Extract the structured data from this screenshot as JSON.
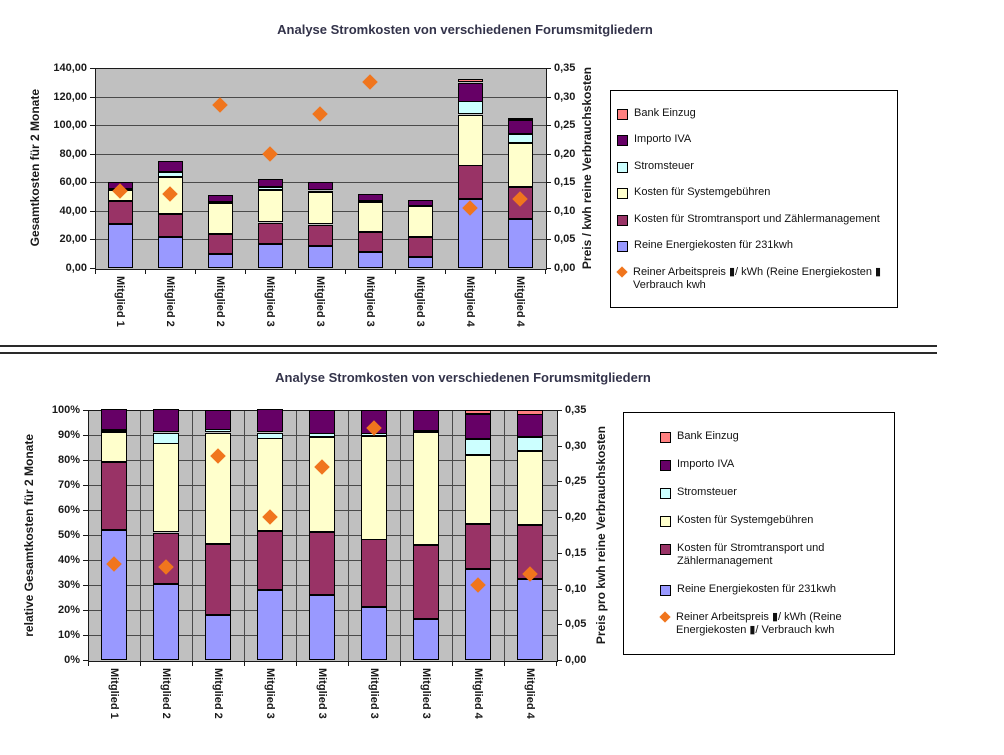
{
  "colors": {
    "plot_background": "#C0C0C0",
    "gridline": "#4A4A4A",
    "axis_line": "#1A1A1A",
    "title_text": "#33334A",
    "legend_background": "#FFFFFF",
    "legend_border": "#000000",
    "marker_orange": "#F0751D"
  },
  "chart_data": [
    {
      "type": "bar",
      "stacked": true,
      "percent": false,
      "title": "Analyse Stromkosten von verschiedenen Forumsmitgliedern",
      "categories": [
        "Mitglied 1",
        "Mitglied 2",
        "Mitglied 2",
        "Mitglied 3",
        "Mitglied 3",
        "Mitglied 3",
        "Mitglied 3",
        "Mitglied 4",
        "Mitglied 4"
      ],
      "y_axis": {
        "label": "Gesamtkosten für 2 Monate",
        "min": 0,
        "max": 140,
        "ticks": [
          "0,00",
          "20,00",
          "40,00",
          "60,00",
          "80,00",
          "100,00",
          "120,00",
          "140,00"
        ]
      },
      "y2_axis": {
        "label": "Preis / kwh reine Verbrauchskosten",
        "min": 0,
        "max": 0.35,
        "ticks": [
          "0,00",
          "0,05",
          "0,10",
          "0,15",
          "0,20",
          "0,25",
          "0,30",
          "0,35"
        ]
      },
      "grid": {
        "horizontal": true,
        "vertical": false
      },
      "legend_position": "right",
      "series": [
        {
          "name": "Reine Energiekosten für 231kwh",
          "color": "#9999FF",
          "values": [
            31,
            22,
            9.5,
            17,
            15.5,
            11,
            7.8,
            48,
            34
          ]
        },
        {
          "name": "Kosten für Stromtransport und Zählermanagement",
          "color": "#993366",
          "values": [
            16,
            16,
            14,
            15,
            15,
            14,
            14,
            23.5,
            22.5
          ]
        },
        {
          "name": "Kosten für Systemgebühren",
          "color": "#FFFFCC",
          "values": [
            7.5,
            26,
            22,
            22.5,
            23,
            21.5,
            21.5,
            36,
            31
          ]
        },
        {
          "name": "Stromsteuer",
          "color": "#CCFFFF",
          "values": [
            0.5,
            3.5,
            0.5,
            2,
            1,
            0.5,
            0.3,
            9,
            6
          ]
        },
        {
          "name": "Importo IVA",
          "color": "#660066",
          "values": [
            5,
            7.5,
            5,
            5.5,
            5.5,
            5,
            4.2,
            13.5,
            10
          ]
        },
        {
          "name": "Bank Einzug",
          "color": "#FF8080",
          "values": [
            0,
            0,
            0,
            0,
            0,
            0,
            0,
            2,
            1.5
          ]
        }
      ],
      "marker_series": {
        "name": "Reiner Arbeitspreis ▮/ kWh (Reine Energiekosten ▮ Verbrauch kwh",
        "color": "#F0751D",
        "shape": "diamond",
        "values": [
          0.135,
          0.13,
          0.285,
          0.2,
          0.27,
          0.325,
          null,
          0.105,
          0.12
        ]
      }
    },
    {
      "type": "bar",
      "stacked": true,
      "percent": true,
      "title": "Analyse Stromkosten von verschiedenen Forumsmitgliedern",
      "categories": [
        "Mitglied 1",
        "Mitglied 2",
        "Mitglied 2",
        "Mitglied 3",
        "Mitglied 3",
        "Mitglied 3",
        "Mitglied 3",
        "Mitglied 4",
        "Mitglied 4"
      ],
      "y_axis": {
        "label": "relative Gesamtkosten für 2 Monate",
        "min": 0,
        "max": 100,
        "ticks": [
          "0%",
          "10%",
          "20%",
          "30%",
          "40%",
          "50%",
          "60%",
          "70%",
          "80%",
          "90%",
          "100%"
        ]
      },
      "y2_axis": {
        "label": "Preis pro kwh reine Verbrauchskosten",
        "min": 0,
        "max": 0.35,
        "ticks": [
          "0,00",
          "0,05",
          "0,10",
          "0,15",
          "0,20",
          "0,25",
          "0,30",
          "0,35"
        ]
      },
      "grid": {
        "horizontal": true,
        "vertical": true
      },
      "legend_position": "right",
      "series": [
        {
          "name": "Reine Energiekosten für 231kwh",
          "color": "#9999FF",
          "values": [
            52,
            30.5,
            18,
            28,
            26,
            21,
            16.5,
            36.5,
            32.5
          ]
        },
        {
          "name": "Kosten für Stromtransport und Zählermanagement",
          "color": "#993366",
          "values": [
            27,
            20.5,
            28.5,
            23.5,
            25,
            27,
            29.5,
            18,
            21.5
          ]
        },
        {
          "name": "Kosten für Systemgebühren",
          "color": "#FFFFCC",
          "values": [
            12,
            35.5,
            44.5,
            37,
            38,
            41.5,
            45,
            27.5,
            29.5
          ]
        },
        {
          "name": "Stromsteuer",
          "color": "#CCFFFF",
          "values": [
            0.8,
            4.5,
            1,
            2.5,
            1.5,
            1,
            0.6,
            6.5,
            5.5
          ]
        },
        {
          "name": "Importo IVA",
          "color": "#660066",
          "values": [
            8.2,
            9,
            8,
            9,
            9.5,
            9.5,
            8.4,
            10,
            9
          ]
        },
        {
          "name": "Bank Einzug",
          "color": "#FF8080",
          "values": [
            0,
            0,
            0,
            0,
            0,
            0,
            0,
            1.5,
            2
          ]
        }
      ],
      "marker_series": {
        "name": "Reiner Arbeitspreis ▮/ kWh (Reine Energiekosten ▮/ Verbrauch kwh",
        "color": "#F0751D",
        "shape": "diamond",
        "values": [
          0.135,
          0.13,
          0.285,
          0.2,
          0.27,
          0.325,
          null,
          0.105,
          0.12
        ]
      }
    }
  ]
}
